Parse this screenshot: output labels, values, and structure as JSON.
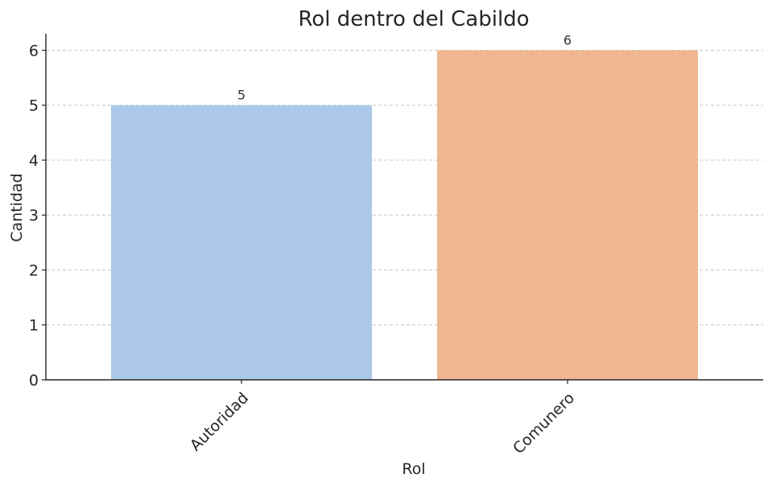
{
  "chart_data": {
    "type": "bar",
    "title": "Rol dentro del Cabildo",
    "xlabel": "Rol",
    "ylabel": "Cantidad",
    "categories": [
      "Autoridad",
      "Comunero"
    ],
    "values": [
      5,
      6
    ],
    "data_labels": [
      "5",
      "6"
    ],
    "colors": [
      "#abc8ea",
      "#efb692"
    ],
    "ylim": [
      0,
      6.3
    ],
    "yticks": [
      0,
      1,
      2,
      3,
      4,
      5,
      6
    ],
    "grid": true,
    "x_tick_rotation": -45,
    "legend": "none"
  }
}
